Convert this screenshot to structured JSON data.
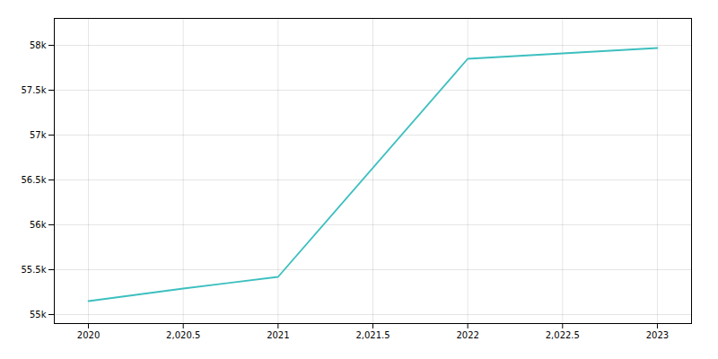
{
  "chart_data": {
    "type": "line",
    "x": [
      2020,
      2020.5,
      2021,
      2022,
      2022.5,
      2023
    ],
    "values": [
      55150,
      55290,
      55420,
      57850,
      57910,
      57970
    ],
    "color": "#3dbfbf",
    "xlim": [
      2019.82,
      2023.18
    ],
    "ylim": [
      54900,
      58300
    ],
    "xticks": [
      2020,
      {
        "value": 2020.5,
        "label": "2,020.5"
      },
      2021,
      {
        "value": 2021.5,
        "label": "2,021.5"
      },
      2022,
      {
        "value": 2022.5,
        "label": "2,022.5"
      },
      2023
    ],
    "yticks": [
      {
        "value": 55000,
        "label": "55k"
      },
      {
        "value": 55500,
        "label": "55.5k"
      },
      {
        "value": 56000,
        "label": "56k"
      },
      {
        "value": 56500,
        "label": "56.5k"
      },
      {
        "value": 57000,
        "label": "57k"
      },
      {
        "value": 57500,
        "label": "57.5k"
      },
      {
        "value": 58000,
        "label": "58k"
      }
    ],
    "grid": true
  }
}
